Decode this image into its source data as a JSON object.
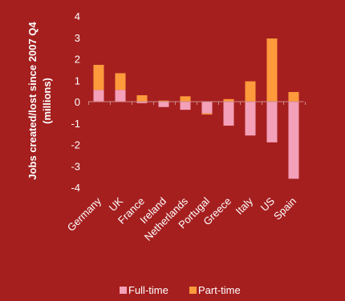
{
  "chart_data": {
    "type": "bar",
    "stacked": true,
    "ylabel_line1": "Jobs created/lost since 2007 Q4",
    "ylabel_line2": "(millions)",
    "ylim": [
      -4,
      4
    ],
    "yticks": [
      4,
      3,
      2,
      1,
      0,
      -1,
      -2,
      -3,
      -4
    ],
    "categories": [
      "Germany",
      "UK",
      "France",
      "Ireland",
      "Netherlands",
      "Portugal",
      "Greece",
      "Italy",
      "US",
      "Spain"
    ],
    "series": [
      {
        "name": "Full-time",
        "color": "#f3a0b8",
        "values": [
          0.55,
          0.55,
          -0.07,
          -0.25,
          -0.38,
          -0.55,
          -1.12,
          -1.58,
          -1.9,
          -3.6
        ]
      },
      {
        "name": "Part-time",
        "color": "#ff9a3c",
        "values": [
          1.17,
          0.78,
          0.3,
          0.05,
          0.25,
          -0.05,
          0.12,
          0.95,
          2.95,
          0.45
        ]
      }
    ],
    "legend_position": "bottom-center",
    "grid": false
  },
  "colors": {
    "background": "#a51f1f",
    "text": "#ffffff",
    "axis": "#cc8a8a"
  }
}
